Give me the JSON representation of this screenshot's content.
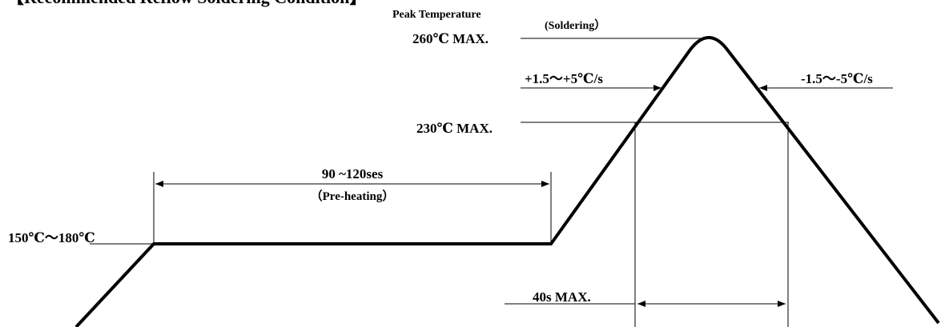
{
  "title": "【Recommended Reflow Soldering Condition】",
  "labels": {
    "peak": "Peak Temperature",
    "soldering": "(Soldering）",
    "t260": "260℃ MAX.",
    "rise": "+1.5～+5℃/s",
    "fall": "-1.5～-5℃/s",
    "t230": "230℃ MAX.",
    "preheat_time": "90 ~120ses",
    "preheat": "（Pre-heating）",
    "t150": "150℃～180℃",
    "t40": "40s MAX."
  }
}
